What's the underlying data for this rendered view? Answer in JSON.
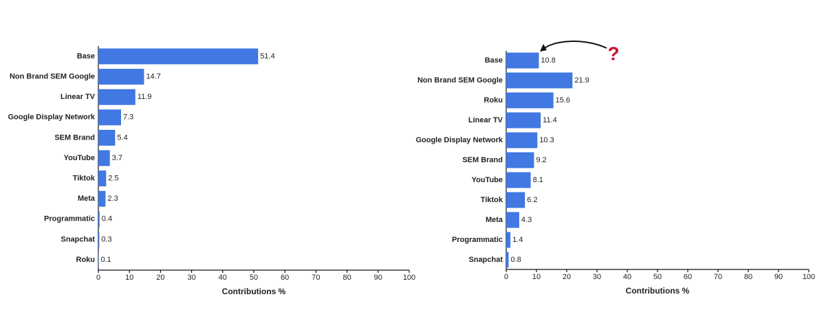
{
  "chart_data": [
    {
      "type": "barh",
      "xlabel": "Contributions %",
      "categories": [
        "Base",
        "Non Brand SEM Google",
        "Linear TV",
        "Google Display Network",
        "SEM Brand",
        "YouTube",
        "Tiktok",
        "Meta",
        "Programmatic",
        "Snapchat",
        "Roku"
      ],
      "values": [
        51.4,
        14.7,
        11.9,
        7.3,
        5.4,
        3.7,
        2.5,
        2.3,
        0.4,
        0.3,
        0.1
      ],
      "color": "#4178e1",
      "xlim": [
        0,
        100
      ],
      "xticks": [
        0,
        10,
        20,
        30,
        40,
        50,
        60,
        70,
        80,
        90,
        100
      ]
    },
    {
      "type": "barh",
      "xlabel": "Contributions %",
      "categories": [
        "Base",
        "Non Brand SEM Google",
        "Roku",
        "Linear TV",
        "Google Display Network",
        "SEM Brand",
        "YouTube",
        "Tiktok",
        "Meta",
        "Programmatic",
        "Snapchat"
      ],
      "values": [
        10.8,
        21.9,
        15.6,
        11.4,
        10.3,
        9.2,
        8.1,
        6.2,
        4.3,
        1.4,
        0.8
      ],
      "color": "#4178e1",
      "xlim": [
        0,
        100
      ],
      "xticks": [
        0,
        10,
        20,
        30,
        40,
        50,
        60,
        70,
        80,
        90,
        100
      ],
      "annotation": "?"
    }
  ]
}
